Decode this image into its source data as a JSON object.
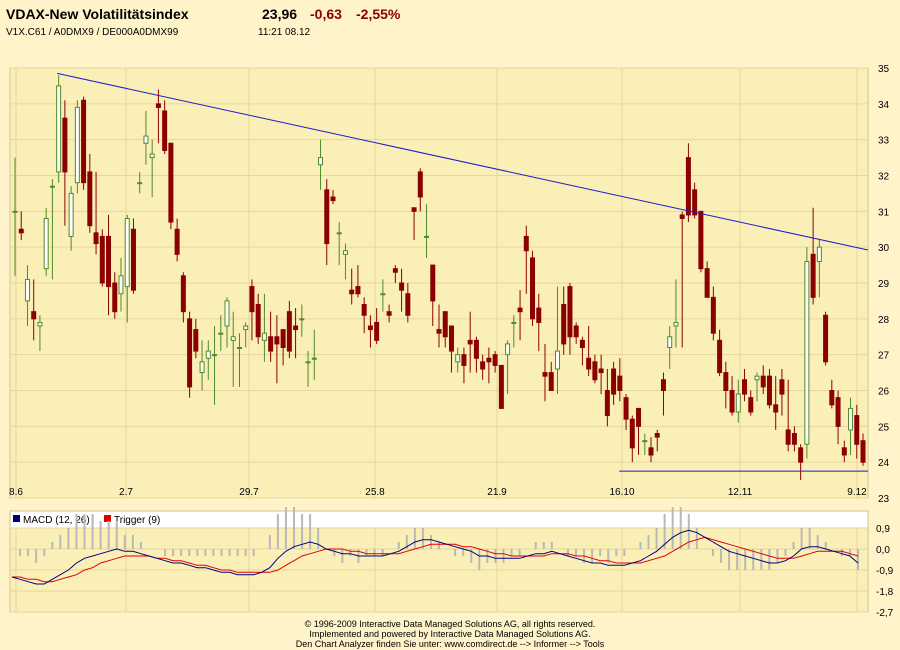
{
  "header": {
    "title": "VDAX-New Volatilitätsindex",
    "last": "23,96",
    "change": "-0,63",
    "change_pct": "-2,55%",
    "identifiers": "V1X.C61  /  A0DMX9  /  DE000A0DMX99",
    "time_date": "11:21   08.12"
  },
  "colors": {
    "up_candle": "#4f8a2b",
    "down_candle": "#8b0000",
    "trendline": "#1c1cc8",
    "macd": "#000080",
    "trigger": "#e00000",
    "histogram": "#b8b8b8",
    "grid": "#e7d69a"
  },
  "footer": [
    "© 1996-2009 Interactive Data Managed Solutions AG, all rights reserved.",
    "Implemented and powered by Interactive Data Managed Solutions AG.",
    "Den Chart Analyzer finden Sie unter: www.comdirect.de --> Informer --> Tools"
  ],
  "chart_data": [
    {
      "type": "candlestick",
      "x_tick_labels": [
        "8.6",
        "2.7",
        "29.7",
        "25.8",
        "21.9",
        "16.10",
        "12.11",
        "9.12"
      ],
      "y_ticks": [
        23,
        24,
        25,
        26,
        27,
        28,
        29,
        30,
        31,
        32,
        33,
        34,
        35
      ],
      "ylim": [
        23,
        35
      ],
      "grid": true,
      "candles": [
        [
          null,
          31.0,
          29.2,
          32.5,
          31.0
        ],
        [
          null,
          30.5,
          30.2,
          31.0,
          30.4
        ],
        [
          null,
          28.5,
          27.8,
          29.5,
          29.1
        ],
        [
          null,
          28.2,
          27.4,
          29.1,
          28.0
        ],
        [
          null,
          27.8,
          27.1,
          28.1,
          27.9
        ],
        [
          null,
          29.4,
          29.2,
          31.1,
          30.8
        ],
        [
          null,
          31.7,
          29.1,
          31.9,
          31.7
        ],
        [
          null,
          32.1,
          31.8,
          34.8,
          34.5
        ],
        [
          null,
          33.6,
          30.6,
          34.1,
          32.1
        ],
        [
          null,
          30.3,
          29.9,
          31.7,
          31.5
        ],
        [
          null,
          31.8,
          31.5,
          34.1,
          33.9
        ],
        [
          null,
          34.1,
          31.6,
          34.2,
          31.8
        ],
        [
          null,
          32.1,
          30.4,
          32.6,
          30.6
        ],
        [
          null,
          30.4,
          29.8,
          32.1,
          30.1
        ],
        [
          null,
          30.3,
          28.9,
          30.5,
          29.0
        ],
        [
          null,
          30.3,
          28.1,
          30.9,
          28.9
        ],
        [
          null,
          29.0,
          28.0,
          29.3,
          28.2
        ],
        [
          null,
          28.7,
          28.2,
          29.7,
          29.2
        ],
        [
          null,
          28.9,
          27.9,
          30.9,
          30.8
        ],
        [
          null,
          30.5,
          28.7,
          30.8,
          28.8
        ],
        [
          null,
          31.8,
          31.5,
          32.1,
          31.8
        ],
        [
          null,
          32.9,
          32.3,
          33.8,
          33.1
        ],
        [
          null,
          32.5,
          31.4,
          33.0,
          32.6
        ],
        [
          null,
          34.0,
          32.9,
          34.4,
          33.9
        ],
        [
          null,
          33.8,
          32.6,
          34.1,
          32.7
        ],
        [
          null,
          32.9,
          30.5,
          32.9,
          30.7
        ],
        [
          null,
          30.5,
          29.6,
          30.8,
          29.8
        ],
        [
          null,
          29.2,
          27.9,
          29.3,
          28.2
        ],
        [
          null,
          28.0,
          25.8,
          28.2,
          26.1
        ],
        [
          null,
          27.7,
          26.9,
          28.0,
          27.1
        ],
        [
          null,
          26.5,
          26.0,
          27.4,
          26.8
        ],
        [
          null,
          26.9,
          26.3,
          27.4,
          27.1
        ],
        [
          null,
          27.0,
          25.6,
          27.8,
          27.0
        ],
        [
          null,
          27.6,
          27.1,
          28.1,
          27.6
        ],
        [
          null,
          27.8,
          27.2,
          28.6,
          28.5
        ],
        [
          null,
          27.4,
          26.1,
          28.2,
          27.5
        ],
        [
          null,
          27.2,
          26.1,
          27.6,
          27.2
        ],
        [
          null,
          27.7,
          27.2,
          27.9,
          27.8
        ],
        [
          null,
          28.9,
          27.4,
          29.1,
          28.2
        ],
        [
          null,
          28.4,
          27.3,
          28.7,
          27.5
        ],
        [
          null,
          27.4,
          26.8,
          28.7,
          27.6
        ],
        [
          null,
          27.5,
          26.8,
          28.2,
          27.1
        ],
        [
          null,
          27.5,
          26.2,
          28.1,
          27.3
        ],
        [
          null,
          27.7,
          26.7,
          27.7,
          27.2
        ],
        [
          null,
          28.2,
          26.9,
          28.5,
          27.1
        ],
        [
          null,
          27.8,
          26.9,
          28.3,
          27.7
        ],
        [
          null,
          28.0,
          27.5,
          28.4,
          28.0
        ],
        [
          null,
          26.8,
          26.1,
          27.1,
          26.8
        ],
        [
          null,
          26.9,
          26.3,
          27.7,
          26.9
        ],
        [
          null,
          32.3,
          31.6,
          33.0,
          32.5
        ],
        [
          null,
          31.6,
          29.5,
          31.9,
          30.1
        ],
        [
          null,
          31.4,
          31.2,
          31.6,
          31.3
        ],
        [
          null,
          30.4,
          29.5,
          30.7,
          30.4
        ],
        [
          null,
          29.8,
          29.1,
          30.1,
          29.9
        ],
        [
          null,
          28.8,
          28.4,
          29.4,
          28.7
        ],
        [
          null,
          28.9,
          28.6,
          29.5,
          28.7
        ],
        [
          null,
          28.4,
          27.6,
          28.6,
          28.1
        ],
        [
          null,
          27.8,
          27.2,
          28.1,
          27.7
        ],
        [
          null,
          27.9,
          27.3,
          28.3,
          27.4
        ],
        [
          null,
          28.7,
          28.2,
          29.1,
          28.7
        ],
        [
          null,
          28.2,
          27.9,
          28.4,
          28.1
        ],
        [
          null,
          29.4,
          29.0,
          29.5,
          29.3
        ],
        [
          null,
          29.0,
          28.2,
          29.4,
          28.8
        ],
        [
          null,
          28.7,
          27.9,
          29.0,
          28.1
        ],
        [
          null,
          31.1,
          30.2,
          31.1,
          31.0
        ],
        [
          null,
          32.1,
          31.0,
          32.2,
          31.4
        ],
        [
          null,
          30.3,
          29.7,
          31.2,
          30.3
        ],
        [
          null,
          29.5,
          27.8,
          29.5,
          28.5
        ],
        [
          null,
          27.7,
          27.2,
          28.4,
          27.6
        ],
        [
          null,
          28.2,
          27.2,
          28.2,
          27.5
        ],
        [
          null,
          27.8,
          26.5,
          27.8,
          27.1
        ],
        [
          null,
          26.8,
          26.5,
          27.2,
          27.0
        ],
        [
          null,
          27.0,
          26.2,
          27.2,
          26.7
        ],
        [
          null,
          27.4,
          26.5,
          28.2,
          27.3
        ],
        [
          null,
          27.4,
          26.5,
          27.5,
          26.9
        ],
        [
          null,
          26.8,
          26.3,
          27.0,
          26.6
        ],
        [
          null,
          26.9,
          26.2,
          27.2,
          26.8
        ],
        [
          null,
          27.0,
          26.5,
          27.1,
          26.7
        ],
        [
          null,
          26.7,
          25.5,
          26.7,
          25.5
        ],
        [
          null,
          27.0,
          25.9,
          27.4,
          27.3
        ],
        [
          null,
          27.9,
          27.2,
          28.1,
          27.9
        ],
        [
          null,
          28.3,
          27.4,
          28.8,
          28.2
        ],
        [
          null,
          30.3,
          28.7,
          30.6,
          29.9
        ],
        [
          null,
          29.7,
          27.8,
          29.9,
          28.0
        ],
        [
          null,
          28.3,
          27.1,
          28.7,
          27.9
        ],
        [
          null,
          26.5,
          25.7,
          27.3,
          26.4
        ],
        [
          null,
          26.5,
          26.0,
          26.8,
          26.0
        ],
        [
          null,
          26.6,
          25.9,
          28.9,
          27.1
        ],
        [
          null,
          28.4,
          27.0,
          28.9,
          27.3
        ],
        [
          null,
          28.9,
          27.0,
          29.0,
          27.5
        ],
        [
          null,
          27.8,
          27.3,
          27.9,
          27.5
        ],
        [
          null,
          27.4,
          26.7,
          27.5,
          27.2
        ],
        [
          null,
          26.9,
          26.4,
          27.8,
          26.6
        ],
        [
          null,
          26.8,
          26.2,
          27.0,
          26.3
        ],
        [
          null,
          26.6,
          25.9,
          27.0,
          26.5
        ],
        [
          null,
          26.0,
          25.0,
          26.6,
          25.3
        ],
        [
          null,
          26.6,
          25.6,
          26.8,
          25.9
        ],
        [
          null,
          26.4,
          25.7,
          26.9,
          26.0
        ],
        [
          null,
          25.8,
          24.9,
          25.9,
          25.2
        ],
        [
          null,
          25.2,
          24.0,
          25.3,
          24.4
        ],
        [
          null,
          25.5,
          24.2,
          25.5,
          25.0
        ],
        [
          null,
          24.6,
          24.2,
          24.8,
          24.6
        ],
        [
          null,
          24.4,
          24.0,
          24.7,
          24.2
        ],
        [
          null,
          24.8,
          24.3,
          24.9,
          24.7
        ],
        [
          null,
          26.3,
          25.3,
          26.5,
          26.0
        ],
        [
          null,
          27.2,
          26.6,
          27.8,
          27.5
        ],
        [
          null,
          27.8,
          27.2,
          29.1,
          27.9
        ],
        [
          null,
          30.9,
          27.2,
          31.0,
          30.8
        ],
        [
          null,
          32.5,
          30.7,
          32.9,
          30.9
        ],
        [
          null,
          31.6,
          30.8,
          31.8,
          30.9
        ],
        [
          null,
          31.0,
          29.3,
          31.0,
          29.4
        ],
        [
          null,
          29.4,
          28.6,
          29.6,
          28.6
        ],
        [
          null,
          28.6,
          27.4,
          28.9,
          27.6
        ],
        [
          null,
          27.4,
          26.4,
          27.7,
          26.5
        ],
        [
          null,
          26.5,
          25.5,
          26.8,
          26.0
        ],
        [
          null,
          26.0,
          25.3,
          26.4,
          25.4
        ],
        [
          null,
          25.4,
          25.1,
          26.3,
          25.9
        ],
        [
          null,
          26.3,
          25.7,
          26.6,
          25.9
        ],
        [
          null,
          25.8,
          25.3,
          26.0,
          25.4
        ],
        [
          null,
          26.3,
          25.7,
          26.5,
          26.4
        ],
        [
          null,
          26.4,
          25.9,
          26.7,
          26.1
        ],
        [
          null,
          26.4,
          25.5,
          26.6,
          25.6
        ],
        [
          null,
          25.6,
          24.9,
          26.4,
          25.4
        ],
        [
          null,
          26.3,
          25.3,
          26.6,
          25.9
        ],
        [
          null,
          24.9,
          24.3,
          26.3,
          24.5
        ],
        [
          null,
          24.8,
          24.3,
          25.0,
          24.5
        ],
        [
          null,
          24.4,
          23.5,
          24.5,
          24.0
        ],
        [
          null,
          24.5,
          24.1,
          30.0,
          29.6
        ],
        [
          null,
          29.8,
          28.4,
          31.1,
          28.6
        ],
        [
          null,
          29.6,
          28.6,
          30.2,
          30.0
        ],
        [
          null,
          28.1,
          26.7,
          28.2,
          26.8
        ],
        [
          null,
          26.0,
          25.5,
          26.3,
          25.6
        ],
        [
          null,
          25.8,
          24.5,
          26.0,
          25.0
        ],
        [
          null,
          24.4,
          24.0,
          24.6,
          24.2
        ],
        [
          null,
          24.9,
          24.2,
          25.8,
          25.5
        ],
        [
          null,
          25.3,
          24.1,
          25.6,
          24.5
        ],
        [
          null,
          24.6,
          23.9,
          24.8,
          24.0
        ]
      ],
      "trend_lines": [
        {
          "from": [
            0.055,
            34.85
          ],
          "to": [
            1.0,
            29.92
          ]
        },
        {
          "from": [
            0.71,
            23.75
          ],
          "to": [
            1.0,
            23.75
          ]
        }
      ]
    },
    {
      "type": "line",
      "y_ticks": [
        0.9,
        0.0,
        -0.9,
        -1.8,
        -2.7
      ],
      "y_tick_labels": [
        "0,9",
        "0,0",
        "-0,9",
        "-1,8",
        "-2,7"
      ],
      "ylim": [
        -2.7,
        0.9
      ],
      "legend": [
        "MACD (12, 26)",
        "Trigger (9)"
      ],
      "series": [
        {
          "name": "MACD (12, 26)",
          "values": [
            -1.2,
            -1.3,
            -1.4,
            -1.5,
            -1.5,
            -1.3,
            -1.1,
            -0.9,
            -0.6,
            -0.4,
            -0.3,
            -0.2,
            -0.1,
            0.0,
            -0.1,
            -0.1,
            -0.2,
            -0.3,
            -0.4,
            -0.5,
            -0.6,
            -0.6,
            -0.7,
            -0.8,
            -0.8,
            -0.9,
            -1.0,
            -1.0,
            -1.1,
            -1.1,
            -1.1,
            -1.0,
            -0.8,
            -0.4,
            -0.1,
            0.1,
            0.2,
            0.3,
            0.2,
            0.0,
            -0.1,
            -0.2,
            -0.2,
            -0.3,
            -0.3,
            -0.3,
            -0.3,
            -0.2,
            -0.1,
            0.1,
            0.3,
            0.4,
            0.4,
            0.3,
            0.2,
            0.1,
            0.0,
            -0.1,
            -0.3,
            -0.3,
            -0.4,
            -0.4,
            -0.4,
            -0.4,
            -0.3,
            -0.2,
            -0.2,
            -0.1,
            -0.2,
            -0.3,
            -0.4,
            -0.5,
            -0.6,
            -0.6,
            -0.7,
            -0.7,
            -0.7,
            -0.6,
            -0.5,
            -0.3,
            -0.1,
            0.2,
            0.5,
            0.7,
            0.8,
            0.7,
            0.5,
            0.3,
            0.1,
            -0.1,
            -0.2,
            -0.3,
            -0.4,
            -0.5,
            -0.6,
            -0.6,
            -0.5,
            -0.3,
            0.0,
            0.1,
            0.1,
            0.0,
            -0.1,
            -0.2,
            -0.3,
            -0.6
          ]
        },
        {
          "name": "Trigger (9)",
          "values": [
            -1.2,
            -1.2,
            -1.3,
            -1.3,
            -1.4,
            -1.4,
            -1.3,
            -1.2,
            -1.1,
            -0.9,
            -0.8,
            -0.6,
            -0.5,
            -0.4,
            -0.3,
            -0.3,
            -0.3,
            -0.3,
            -0.4,
            -0.4,
            -0.5,
            -0.5,
            -0.6,
            -0.7,
            -0.7,
            -0.8,
            -0.9,
            -0.9,
            -1.0,
            -1.0,
            -1.0,
            -1.0,
            -1.0,
            -0.9,
            -0.7,
            -0.5,
            -0.3,
            -0.2,
            -0.1,
            0.0,
            0.0,
            0.0,
            -0.1,
            -0.1,
            -0.2,
            -0.2,
            -0.2,
            -0.2,
            -0.2,
            -0.1,
            0.0,
            0.1,
            0.2,
            0.2,
            0.2,
            0.2,
            0.1,
            0.1,
            0.0,
            -0.1,
            -0.2,
            -0.2,
            -0.3,
            -0.3,
            -0.3,
            -0.3,
            -0.3,
            -0.2,
            -0.2,
            -0.2,
            -0.3,
            -0.3,
            -0.4,
            -0.5,
            -0.5,
            -0.6,
            -0.6,
            -0.6,
            -0.6,
            -0.5,
            -0.4,
            -0.3,
            -0.1,
            0.1,
            0.3,
            0.4,
            0.5,
            0.4,
            0.3,
            0.2,
            0.1,
            0.0,
            -0.1,
            -0.2,
            -0.3,
            -0.4,
            -0.4,
            -0.4,
            -0.3,
            -0.2,
            -0.1,
            -0.1,
            -0.1,
            -0.1,
            -0.2,
            -0.3
          ]
        }
      ]
    }
  ]
}
